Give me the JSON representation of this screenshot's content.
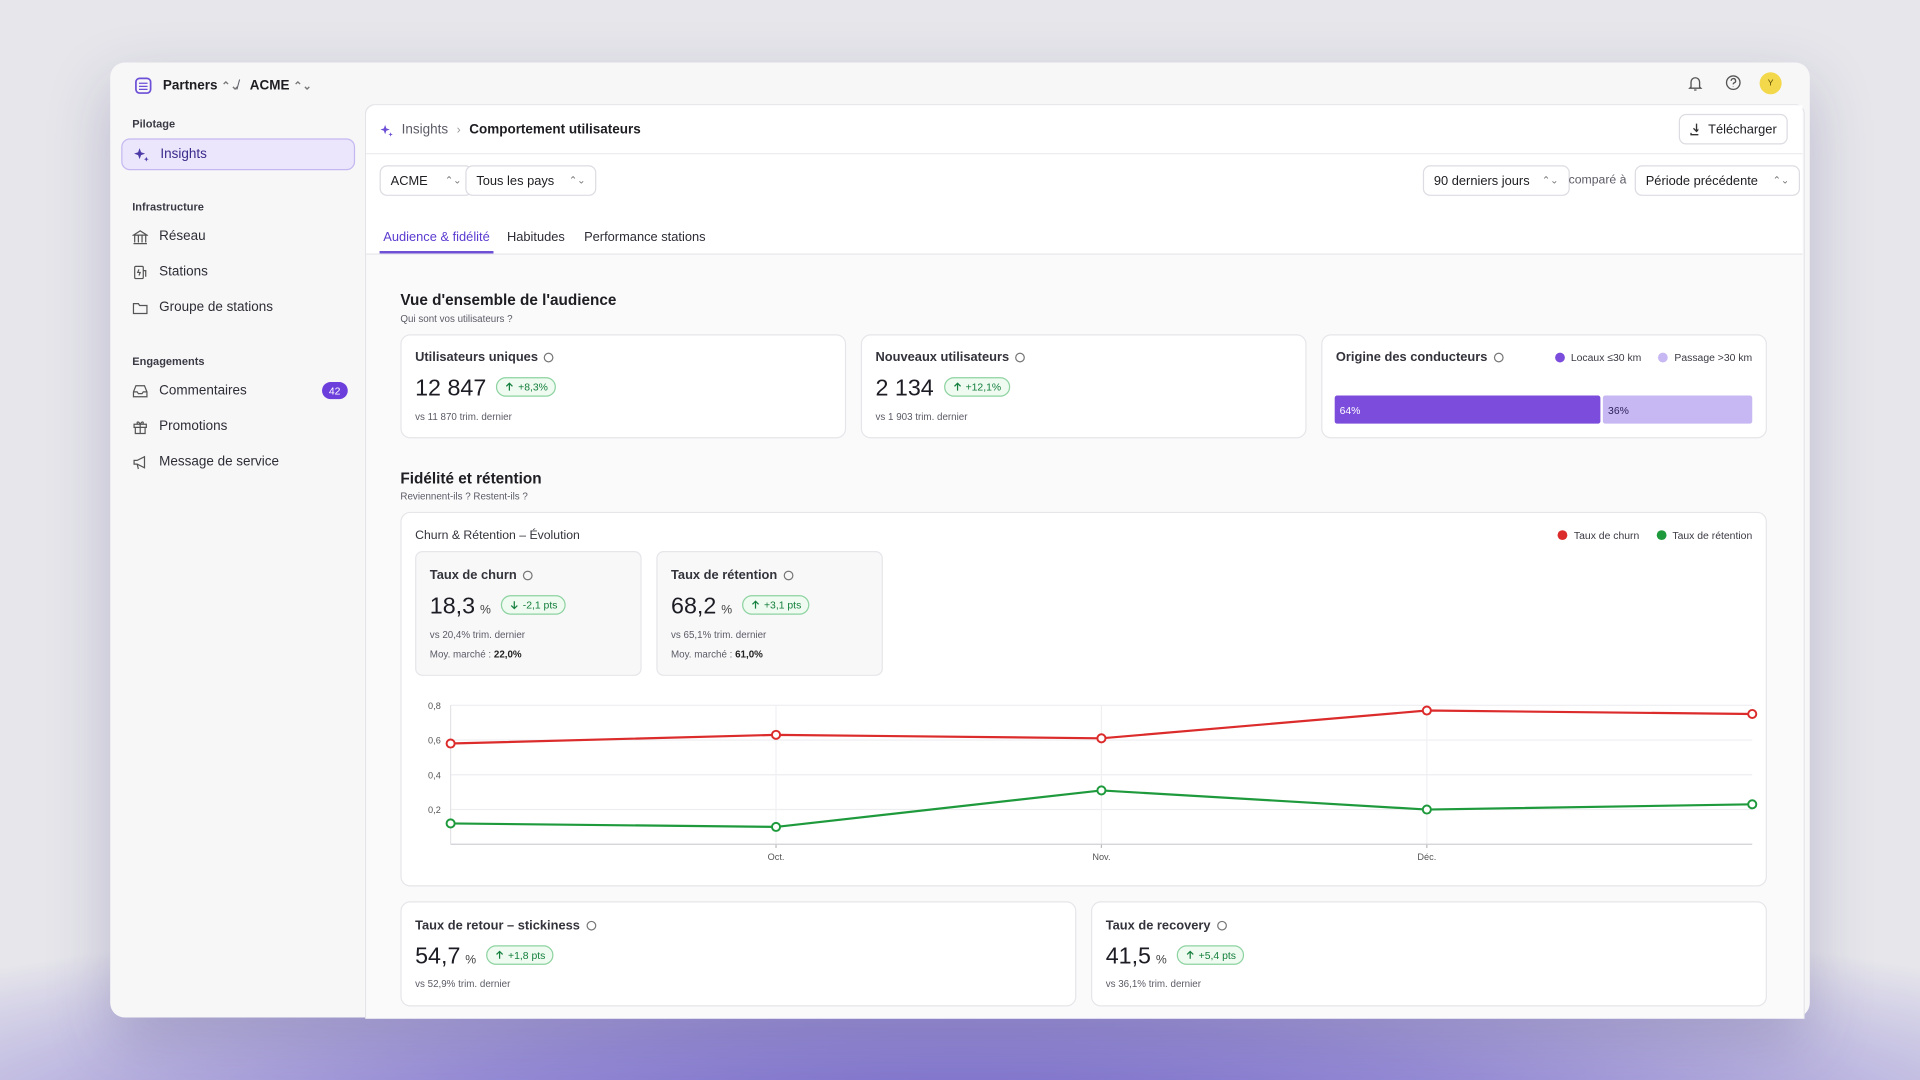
{
  "topbar": {
    "org": "Partners",
    "separator": "/",
    "account": "ACME",
    "avatar": "Y"
  },
  "sidebar": {
    "sections": [
      {
        "title": "Pilotage",
        "items": [
          {
            "label": "Insights"
          }
        ]
      },
      {
        "title": "Infrastructure",
        "items": [
          {
            "label": "Réseau"
          },
          {
            "label": "Stations"
          },
          {
            "label": "Groupe de stations"
          }
        ]
      },
      {
        "title": "Engagements",
        "items": [
          {
            "label": "Commentaires",
            "badge": 42
          },
          {
            "label": "Promotions"
          },
          {
            "label": "Message de service"
          }
        ]
      }
    ]
  },
  "breadcrumb": [
    "Insights",
    "Comportement utilisateurs"
  ],
  "download": "Télécharger",
  "filters": {
    "account": "ACME",
    "country": "Tous les pays",
    "period": "90 derniers jours",
    "compare_label": "comparé à",
    "compare": "Période précédente"
  },
  "tabs": [
    "Audience & fidélité",
    "Habitudes",
    "Performance stations"
  ],
  "audience": {
    "title": "Vue d'ensemble de l'audience",
    "subtitle": "Qui sont vos utilisateurs ?",
    "kpis": [
      {
        "label": "Utilisateurs uniques",
        "value": "12 847",
        "delta": "+8,3%",
        "trend": "up",
        "note": "vs 11 870 trim. dernier"
      },
      {
        "label": "Nouveaux utilisateurs",
        "value": "2 134",
        "delta": "+12,1%",
        "trend": "up",
        "note": "vs 1 903 trim. dernier"
      }
    ],
    "origin": {
      "title": "Origine des conducteurs",
      "series": [
        {
          "name": "Locaux ≤30 km",
          "color": "#7c4ddc",
          "value": 64,
          "value_label": "64%"
        },
        {
          "name": "Passage >30 km",
          "color": "#c7b8f3",
          "value": 36,
          "value_label": "36%"
        }
      ]
    }
  },
  "retention": {
    "title": "Fidélité et rétention",
    "subtitle": "Reviennent-ils ? Restent-ils ?",
    "chart": {
      "type": "line",
      "title": "Churn & Rétention – Évolution",
      "categories": [
        null,
        "Oct.",
        "Nov.",
        "Déc.",
        null
      ],
      "series": [
        {
          "name": "Taux de churn",
          "color": "#dc2b2b",
          "values": [
            0.58,
            0.63,
            0.61,
            0.77,
            0.75
          ]
        },
        {
          "name": "Taux de rétention",
          "color": "#1e9a3c",
          "values": [
            0.12,
            0.1,
            0.31,
            0.2,
            0.23
          ]
        }
      ],
      "ylim": [
        0,
        0.8
      ],
      "yticks": [
        {
          "value": 0.2,
          "label": "0,2"
        },
        {
          "value": 0.4,
          "label": "0,4"
        },
        {
          "value": 0.6,
          "label": "0,6"
        },
        {
          "value": 0.8,
          "label": "0,8"
        }
      ],
      "grid": true
    },
    "chart_kpis": [
      {
        "label": "Taux de churn",
        "value": "18,3",
        "unit": "%",
        "delta": "-2,1 pts",
        "trend": "down",
        "note": "vs 20,4% trim. dernier",
        "market_label": "Moy. marché :",
        "market": "22,0%"
      },
      {
        "label": "Taux de rétention",
        "value": "68,2",
        "unit": "%",
        "delta": "+3,1 pts",
        "trend": "up",
        "note": "vs 65,1% trim. dernier",
        "market_label": "Moy. marché :",
        "market": "61,0%"
      }
    ],
    "bottom_kpis": [
      {
        "label": "Taux de retour – stickiness",
        "value": "54,7",
        "unit": "%",
        "delta": "+1,8 pts",
        "trend": "up",
        "note": "vs 52,9% trim. dernier"
      },
      {
        "label": "Taux de recovery",
        "value": "41,5",
        "unit": "%",
        "delta": "+5,4 pts",
        "trend": "up",
        "note": "vs 36,1% trim. dernier"
      }
    ]
  }
}
